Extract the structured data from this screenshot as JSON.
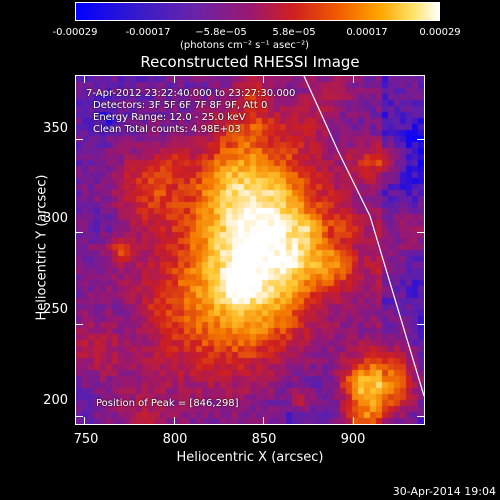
{
  "colorbar": {
    "ticks": [
      "-0.00029",
      "-0.00017",
      "−5.8e−05",
      "5.8e−05",
      "0.00017",
      "0.00029"
    ],
    "units": "(photons cm⁻² s⁻¹ asec⁻²)"
  },
  "chart_data": {
    "type": "heatmap",
    "title": "Reconstructed RHESSI Image",
    "xlabel": "Heliocentric X (arcsec)",
    "ylabel": "Heliocentric Y (arcsec)",
    "xlim": [
      745,
      940
    ],
    "ylim": [
      195,
      385
    ],
    "xticks": [
      750,
      800,
      850,
      900
    ],
    "yticks": [
      200,
      250,
      300,
      350
    ],
    "info_lines": [
      "7-Apr-2012 23:22:40.000 to 23:27:30.000",
      "Detectors: 3F 5F 6F 7F 8F 9F, Att 0",
      "Energy Range: 12.0 - 25.0 keV",
      "Clean      Total counts: 4.98E+03"
    ],
    "peak_label": "Position of Peak = [846,298]",
    "peak": [
      846,
      298
    ],
    "colormap": [
      "#0000ff",
      "#5a1fb0",
      "#9a1870",
      "#d0201e",
      "#f57a00",
      "#ffc830",
      "#ffffff"
    ],
    "limb_color": "#ffffff"
  },
  "footer": {
    "timestamp": "30-Apr-2014 19:04"
  }
}
